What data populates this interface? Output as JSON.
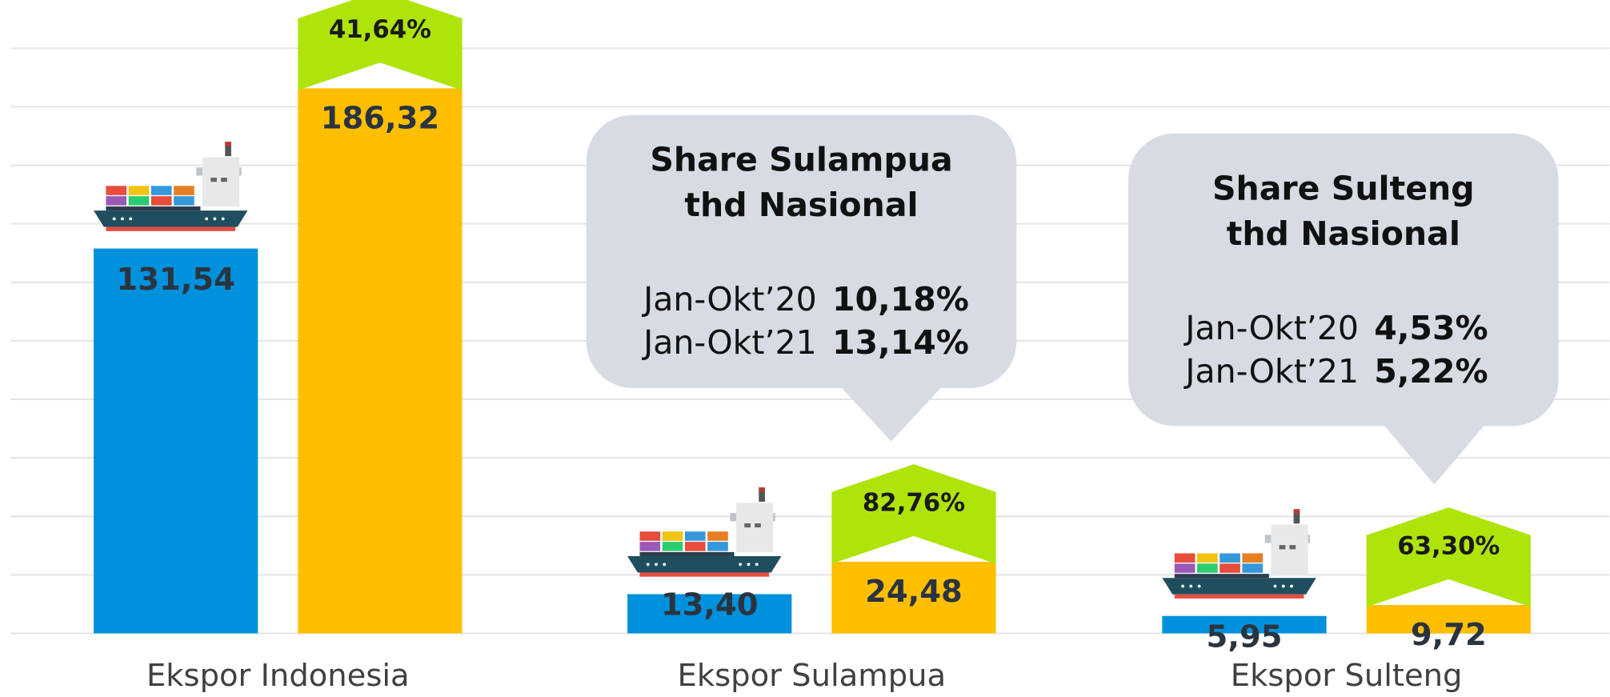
{
  "chart_data": {
    "type": "bar",
    "categories": [
      "Ekspor Indonesia",
      "Ekspor Sulampua",
      "Ekspor Sulteng"
    ],
    "series": [
      {
        "color": "#0091dc",
        "values": [
          131.54,
          13.4,
          5.95
        ],
        "value_labels": [
          "131,54",
          "13,40",
          "5,95"
        ]
      },
      {
        "color": "#ffbf00",
        "values": [
          186.32,
          24.48,
          9.72
        ],
        "value_labels": [
          "186,32",
          "24,48",
          "9,72"
        ]
      }
    ],
    "growth": {
      "color": "#aee40a",
      "values": [
        41.64,
        82.76,
        63.3
      ],
      "value_labels": [
        "41,64%",
        "82,76%",
        "63,30%"
      ]
    },
    "ylim": [
      0,
      200
    ],
    "yticks": [
      0,
      20,
      40,
      60,
      80,
      100,
      120,
      140,
      160,
      180,
      200
    ],
    "grid": true,
    "callouts": [
      {
        "title": [
          "Share Sulampua",
          "thd Nasional"
        ],
        "rows": [
          {
            "label": "Jan-Okt’20",
            "value": "10,18%"
          },
          {
            "label": "Jan-Okt’21",
            "value": "13,14%"
          }
        ]
      },
      {
        "title": [
          "Share Sulteng",
          "thd Nasional"
        ],
        "rows": [
          {
            "label": "Jan-Okt’20",
            "value": "4,53%"
          },
          {
            "label": "Jan-Okt’21",
            "value": "5,22%"
          }
        ]
      }
    ]
  }
}
